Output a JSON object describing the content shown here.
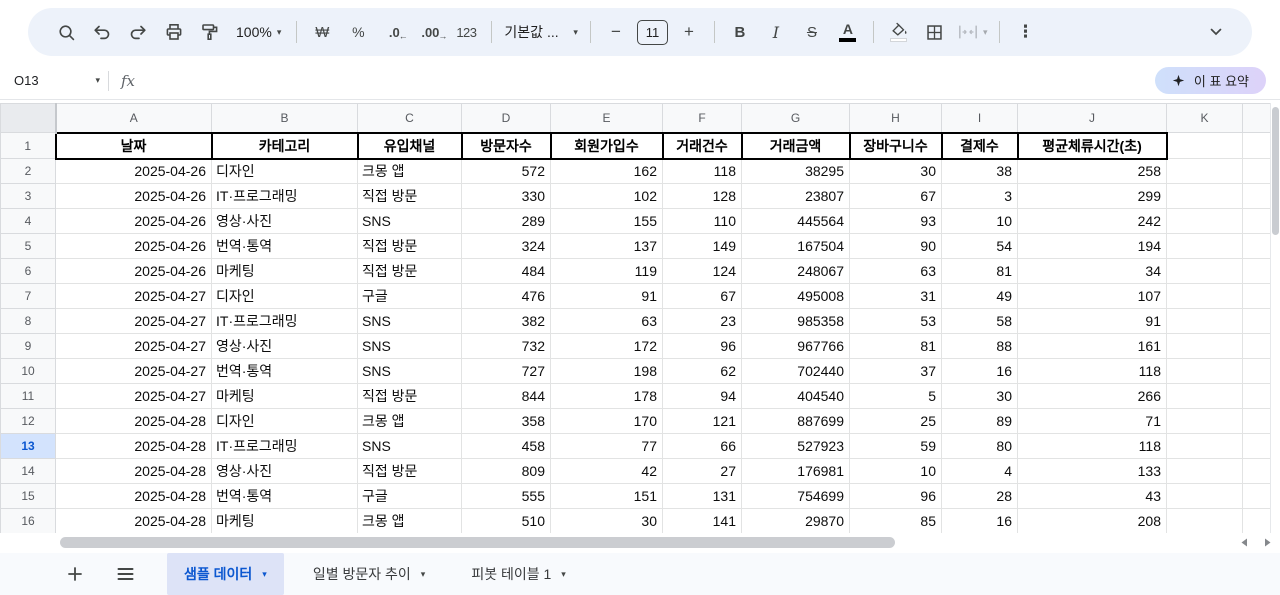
{
  "toolbar": {
    "zoom_label": "100%",
    "currency_label": "₩",
    "percent_label": "%",
    "decrease_decimal_label": ".0",
    "decrease_decimal_arrow": "←",
    "increase_decimal_label": ".00",
    "increase_decimal_arrow": "→",
    "more_formats_label": "123",
    "font_label": "기본값 ...",
    "minus_label": "−",
    "font_size_value": "11",
    "plus_label": "+",
    "bold_label": "B",
    "italic_label": "I",
    "strikethrough_label": "S",
    "text_color_label": "A",
    "more_label": "⋮"
  },
  "formula_bar": {
    "name_box_value": "O13",
    "fx_label": "fx",
    "summarize_label": "이 표 요약"
  },
  "grid": {
    "column_letters": [
      "A",
      "B",
      "C",
      "D",
      "E",
      "F",
      "G",
      "H",
      "I",
      "J",
      "K"
    ],
    "header_row_n": 1,
    "header_row": [
      "날짜",
      "카테고리",
      "유입채널",
      "방문자수",
      "회원가입수",
      "거래건수",
      "거래금액",
      "장바구니수",
      "결제수",
      "평균체류시간(초)"
    ],
    "selected_row": 13,
    "rows": [
      {
        "n": 2,
        "date": "2025-04-26",
        "category": "디자인",
        "channel": "크몽 앱",
        "values": [
          572,
          162,
          118,
          38295,
          30,
          38,
          258
        ]
      },
      {
        "n": 3,
        "date": "2025-04-26",
        "category": "IT·프로그래밍",
        "channel": "직접 방문",
        "values": [
          330,
          102,
          128,
          23807,
          67,
          3,
          299
        ]
      },
      {
        "n": 4,
        "date": "2025-04-26",
        "category": "영상·사진",
        "channel": "SNS",
        "values": [
          289,
          155,
          110,
          445564,
          93,
          10,
          242
        ]
      },
      {
        "n": 5,
        "date": "2025-04-26",
        "category": "번역·통역",
        "channel": "직접 방문",
        "values": [
          324,
          137,
          149,
          167504,
          90,
          54,
          194
        ]
      },
      {
        "n": 6,
        "date": "2025-04-26",
        "category": "마케팅",
        "channel": "직접 방문",
        "values": [
          484,
          119,
          124,
          248067,
          63,
          81,
          34
        ]
      },
      {
        "n": 7,
        "date": "2025-04-27",
        "category": "디자인",
        "channel": "구글",
        "values": [
          476,
          91,
          67,
          495008,
          31,
          49,
          107
        ]
      },
      {
        "n": 8,
        "date": "2025-04-27",
        "category": "IT·프로그래밍",
        "channel": "SNS",
        "values": [
          382,
          63,
          23,
          985358,
          53,
          58,
          91
        ]
      },
      {
        "n": 9,
        "date": "2025-04-27",
        "category": "영상·사진",
        "channel": "SNS",
        "values": [
          732,
          172,
          96,
          967766,
          81,
          88,
          161
        ]
      },
      {
        "n": 10,
        "date": "2025-04-27",
        "category": "번역·통역",
        "channel": "SNS",
        "values": [
          727,
          198,
          62,
          702440,
          37,
          16,
          118
        ]
      },
      {
        "n": 11,
        "date": "2025-04-27",
        "category": "마케팅",
        "channel": "직접 방문",
        "values": [
          844,
          178,
          94,
          404540,
          5,
          30,
          266
        ]
      },
      {
        "n": 12,
        "date": "2025-04-28",
        "category": "디자인",
        "channel": "크몽 앱",
        "values": [
          358,
          170,
          121,
          887699,
          25,
          89,
          71
        ]
      },
      {
        "n": 13,
        "date": "2025-04-28",
        "category": "IT·프로그래밍",
        "channel": "SNS",
        "values": [
          458,
          77,
          66,
          527923,
          59,
          80,
          118
        ]
      },
      {
        "n": 14,
        "date": "2025-04-28",
        "category": "영상·사진",
        "channel": "직접 방문",
        "values": [
          809,
          42,
          27,
          176981,
          10,
          4,
          133
        ]
      },
      {
        "n": 15,
        "date": "2025-04-28",
        "category": "번역·통역",
        "channel": "구글",
        "values": [
          555,
          151,
          131,
          754699,
          96,
          28,
          43
        ]
      },
      {
        "n": 16,
        "date": "2025-04-28",
        "category": "마케팅",
        "channel": "크몽 앱",
        "values": [
          510,
          30,
          141,
          29870,
          85,
          16,
          208
        ]
      }
    ]
  },
  "sheet_tabs": {
    "tabs": [
      {
        "label": "샘플 데이터",
        "active": true
      },
      {
        "label": "일별 방문자 추이",
        "active": false
      },
      {
        "label": "피봇 테이블 1",
        "active": false
      }
    ]
  },
  "colors": {
    "accent_blue": "#0b57d0",
    "selected_header_bg": "#d3e3fd",
    "toolbar_bg": "#edf2fa",
    "active_tab_bg": "#dde3f7",
    "summarize_gradient_start": "#cfe0fb",
    "summarize_gradient_end": "#ddd2f9"
  }
}
